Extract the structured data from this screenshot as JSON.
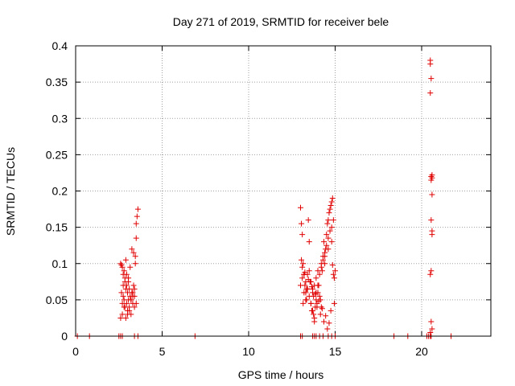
{
  "chart_data": {
    "type": "scatter",
    "title": "Day 271 of 2019, SRMTID for receiver bele",
    "xlabel": "GPS time / hours",
    "ylabel": "SRMTID / TECUs",
    "xlim": [
      0,
      24
    ],
    "ylim": [
      0,
      0.4
    ],
    "xticks": [
      0,
      5,
      10,
      15,
      20
    ],
    "xtick_labels": [
      "0",
      "5",
      "10",
      "15",
      "20"
    ],
    "yticks": [
      0,
      0.05,
      0.1,
      0.15,
      0.2,
      0.25,
      0.3,
      0.35,
      0.4
    ],
    "ytick_labels": [
      "0",
      "0.05",
      "0.1",
      "0.15",
      "0.2",
      "0.25",
      "0.3",
      "0.35",
      "0.4"
    ],
    "grid": true,
    "marker": "+",
    "color": "#e00000",
    "series": [
      {
        "name": "SRMTID",
        "x": [
          0.1,
          0.8,
          2.5,
          2.6,
          2.7,
          3.4,
          3.6,
          6.9,
          13.0,
          13.1,
          13.7,
          13.8,
          13.9,
          14.1,
          14.3,
          14.6,
          14.8,
          15.0,
          18.4,
          19.2,
          20.3,
          20.4,
          20.5,
          21.7,
          2.6,
          2.65,
          2.7,
          2.75,
          2.8,
          2.85,
          2.9,
          2.95,
          3.0,
          3.05,
          3.1,
          3.15,
          3.2,
          3.25,
          3.3,
          3.35,
          3.4,
          3.45,
          3.5,
          3.55,
          3.6,
          2.7,
          2.75,
          2.8,
          2.85,
          2.9,
          2.95,
          3.0,
          3.05,
          3.1,
          3.2,
          3.3,
          3.4,
          3.5,
          2.65,
          2.75,
          2.85,
          2.95,
          3.05,
          3.15,
          3.25,
          3.35,
          3.45,
          2.6,
          2.7,
          2.8,
          2.9,
          3.0,
          3.1,
          3.2,
          3.3,
          3.4,
          3.5,
          13.0,
          13.05,
          13.1,
          13.15,
          13.2,
          13.25,
          13.3,
          13.35,
          13.4,
          13.45,
          13.5,
          13.55,
          13.6,
          13.65,
          13.7,
          13.75,
          13.8,
          13.85,
          13.9,
          13.95,
          14.0,
          14.05,
          14.1,
          14.15,
          14.2,
          14.25,
          14.3,
          14.35,
          14.4,
          14.45,
          14.5,
          14.55,
          14.6,
          14.65,
          14.7,
          14.75,
          14.8,
          14.85,
          14.9,
          14.95,
          15.0,
          13.1,
          13.2,
          13.3,
          13.4,
          13.5,
          13.6,
          13.7,
          13.8,
          13.9,
          14.0,
          14.1,
          14.2,
          14.3,
          14.4,
          14.5,
          14.6,
          14.7,
          14.8,
          14.9,
          13.15,
          13.35,
          13.55,
          13.75,
          13.95,
          14.15,
          14.35,
          14.55,
          14.75,
          14.95,
          13.05,
          13.25,
          13.45,
          13.65,
          13.85,
          14.05,
          14.25,
          14.45,
          14.65,
          14.85,
          13.0,
          13.1,
          13.2,
          13.3,
          13.4,
          13.5,
          13.6,
          13.7,
          13.8,
          13.9,
          14.0,
          14.2,
          14.4,
          14.6,
          14.8,
          20.5,
          20.5,
          20.55,
          20.5,
          20.55,
          20.6,
          20.55,
          20.6,
          20.6,
          20.55,
          20.6,
          20.6,
          20.55,
          20.5,
          20.55,
          20.6,
          20.5,
          20.55
        ],
        "y": [
          0,
          0,
          0,
          0,
          0,
          0,
          0,
          0,
          0,
          0,
          0,
          0,
          0,
          0,
          0,
          0,
          0,
          0,
          0,
          0,
          0,
          0,
          0,
          0,
          0.1,
          0.098,
          0.095,
          0.085,
          0.09,
          0.08,
          0.105,
          0.07,
          0.06,
          0.075,
          0.065,
          0.055,
          0.05,
          0.06,
          0.055,
          0.07,
          0.065,
          0.1,
          0.135,
          0.165,
          0.175,
          0.045,
          0.055,
          0.05,
          0.04,
          0.065,
          0.045,
          0.035,
          0.05,
          0.04,
          0.03,
          0.045,
          0.055,
          0.045,
          0.06,
          0.07,
          0.075,
          0.085,
          0.08,
          0.095,
          0.12,
          0.115,
          0.11,
          0.025,
          0.03,
          0.04,
          0.025,
          0.03,
          0.035,
          0.05,
          0.06,
          0.04,
          0.155,
          0.177,
          0.155,
          0.14,
          0.1,
          0.085,
          0.07,
          0.06,
          0.05,
          0.065,
          0.16,
          0.13,
          0.075,
          0.045,
          0.035,
          0.06,
          0.03,
          0.02,
          0.04,
          0.05,
          0.045,
          0.06,
          0.07,
          0.055,
          0.05,
          0.04,
          0.09,
          0.11,
          0.13,
          0.1,
          0.12,
          0.14,
          0.155,
          0.16,
          0.17,
          0.175,
          0.18,
          0.185,
          0.19,
          0.085,
          0.08,
          0.09,
          0.095,
          0.085,
          0.075,
          0.065,
          0.055,
          0.045,
          0.035,
          0.025,
          0.06,
          0.07,
          0.085,
          0.095,
          0.105,
          0.115,
          0.125,
          0.135,
          0.145,
          0.15,
          0.16,
          0.045,
          0.065,
          0.075,
          0.055,
          0.04,
          0.03,
          0.02,
          0.01,
          0.035,
          0.045,
          0.105,
          0.088,
          0.078,
          0.068,
          0.058,
          0.048,
          0.038,
          0.028,
          0.018,
          0.098,
          0.07,
          0.08,
          0.06,
          0.05,
          0.085,
          0.09,
          0.075,
          0.065,
          0.07,
          0.08,
          0.09,
          0.1,
          0.11,
          0.12,
          0.13,
          0.38,
          0.375,
          0.355,
          0.335,
          0.22,
          0.222,
          0.215,
          0.218,
          0.195,
          0.16,
          0.145,
          0.14,
          0.09,
          0.085,
          0.02,
          0.01,
          0.005,
          0.0
        ]
      }
    ]
  }
}
